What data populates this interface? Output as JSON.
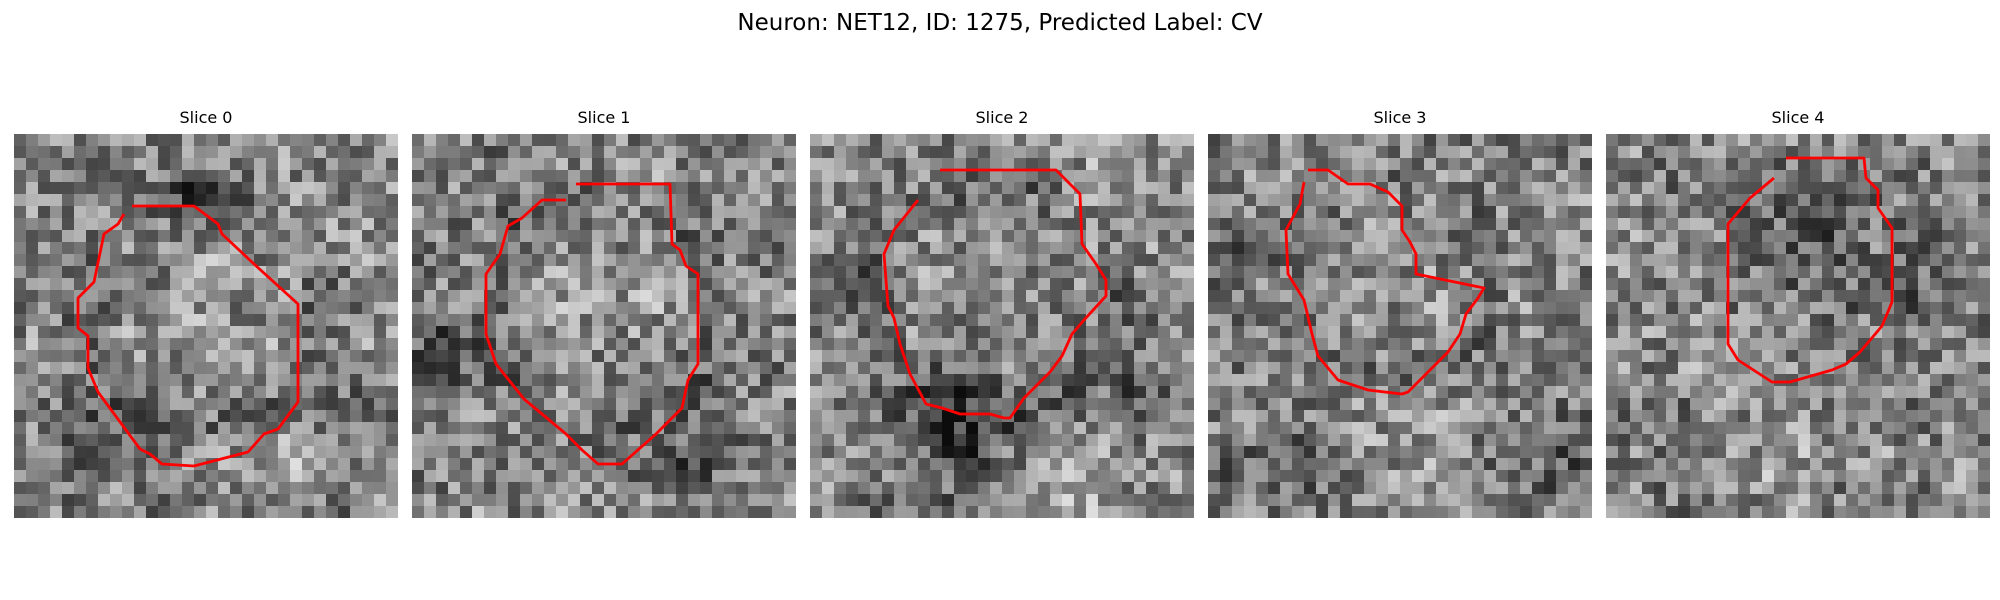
{
  "figure": {
    "title": "Neuron: NET12, ID: 1275, Predicted Label: CV"
  },
  "panels": [
    {
      "title": "Slice 0"
    },
    {
      "title": "Slice 1"
    },
    {
      "title": "Slice 2"
    },
    {
      "title": "Slice 3"
    },
    {
      "title": "Slice 4"
    }
  ],
  "colors": {
    "contour": "#ff0000",
    "colormap": "gray"
  },
  "image_grid": {
    "rows": 32,
    "cols": 32
  }
}
